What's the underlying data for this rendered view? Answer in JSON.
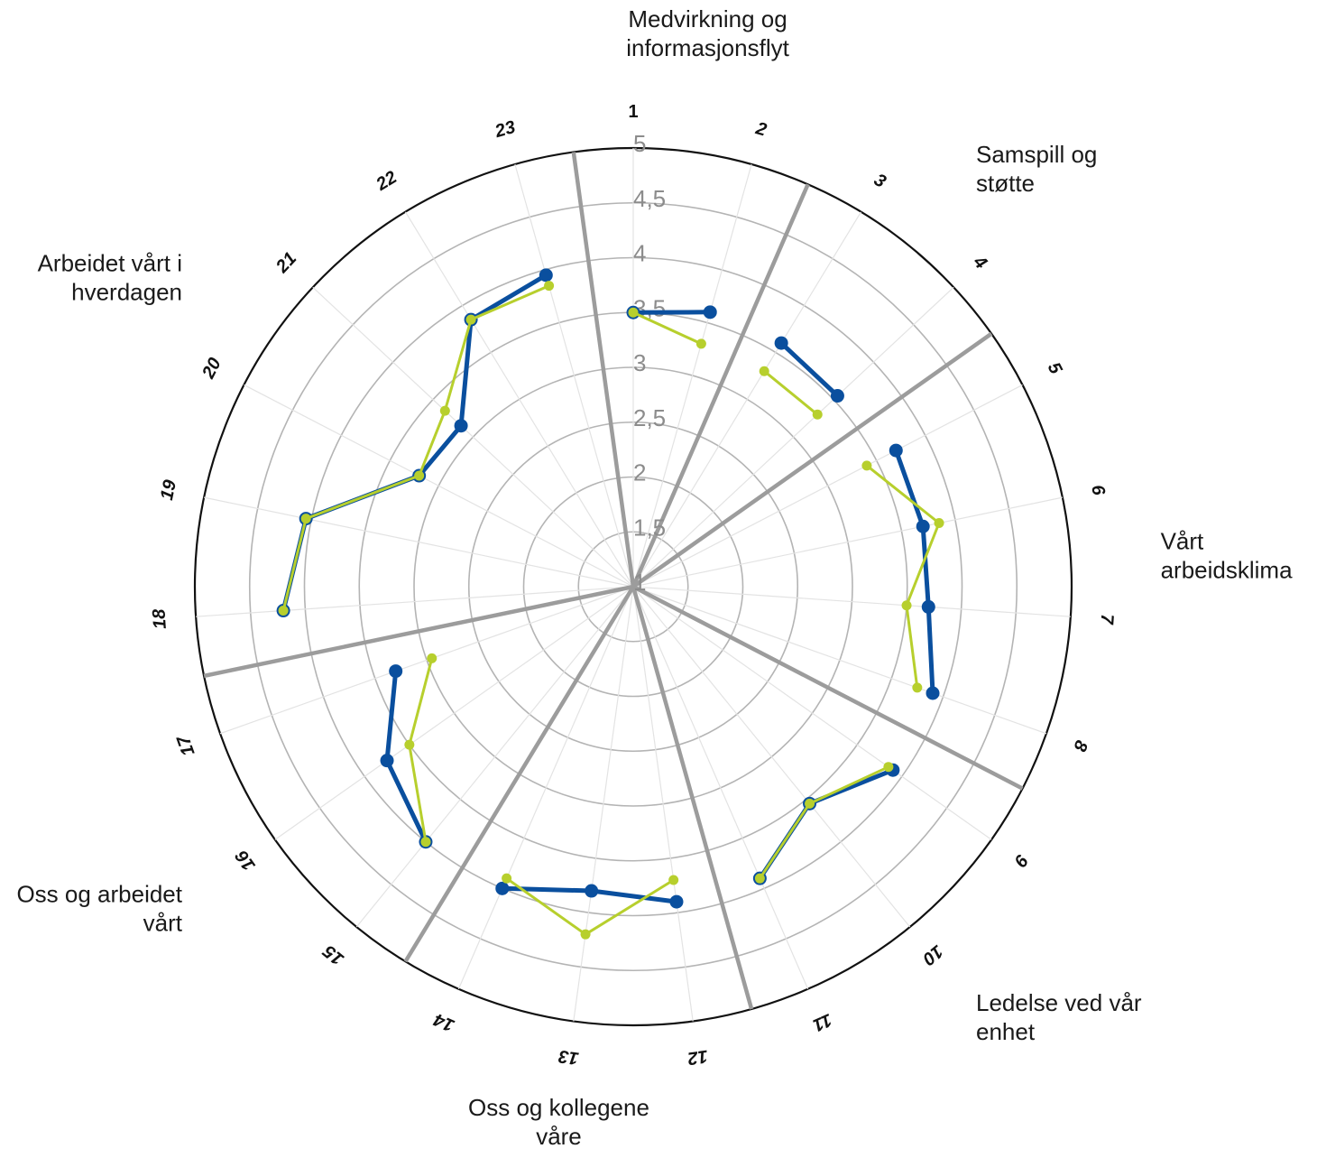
{
  "chart_data": {
    "type": "radar",
    "rlim": [
      1,
      5
    ],
    "radial_ticks": [
      "1",
      "1,5",
      "2",
      "2,5",
      "3",
      "3,5",
      "4",
      "4,5",
      "5"
    ],
    "grid": true,
    "items": [
      "1",
      "2",
      "3",
      "4",
      "5",
      "6",
      "7",
      "8",
      "9",
      "10",
      "11",
      "12",
      "13",
      "14",
      "15",
      "16",
      "17",
      "18",
      "19",
      "20",
      "21",
      "22",
      "23"
    ],
    "groups": [
      {
        "lines": [
          "Medvirkning og",
          "informasjonsflyt"
        ],
        "items": [
          1,
          2
        ]
      },
      {
        "lines": [
          "Samspill og",
          "støtte"
        ],
        "items": [
          3,
          4
        ]
      },
      {
        "lines": [
          "Vårt",
          "arbeidsklima"
        ],
        "items": [
          5,
          6,
          7,
          8
        ]
      },
      {
        "lines": [
          "Ledelse ved vår",
          "enhet"
        ],
        "items": [
          9,
          10,
          11
        ]
      },
      {
        "lines": [
          "Oss og kollegene",
          "våre"
        ],
        "items": [
          12,
          13,
          14
        ]
      },
      {
        "lines": [
          "Oss og arbeidet",
          "vårt"
        ],
        "items": [
          15,
          16,
          17
        ]
      },
      {
        "lines": [
          "Arbeidet vårt i",
          "hverdagen"
        ],
        "items": [
          18,
          19,
          20,
          21,
          22,
          23
        ]
      }
    ],
    "series": [
      {
        "color": "#0a4f9e",
        "values": [
          3.5,
          3.6,
          3.6,
          3.55,
          3.7,
          3.7,
          3.7,
          3.9,
          3.9,
          3.55,
          3.9,
          3.9,
          3.8,
          4.0,
          4.0,
          3.75,
          3.3,
          4.2,
          4.05,
          3.2,
          3.15,
          3.85,
          3.95
        ]
      },
      {
        "color": "#b7cf2d",
        "values": [
          3.5,
          3.3,
          3.3,
          3.3,
          3.4,
          3.85,
          3.5,
          3.75,
          3.85,
          3.55,
          3.9,
          3.7,
          4.2,
          3.9,
          4.0,
          3.5,
          2.95,
          4.2,
          4.05,
          3.2,
          3.35,
          3.85,
          3.85
        ]
      }
    ]
  }
}
